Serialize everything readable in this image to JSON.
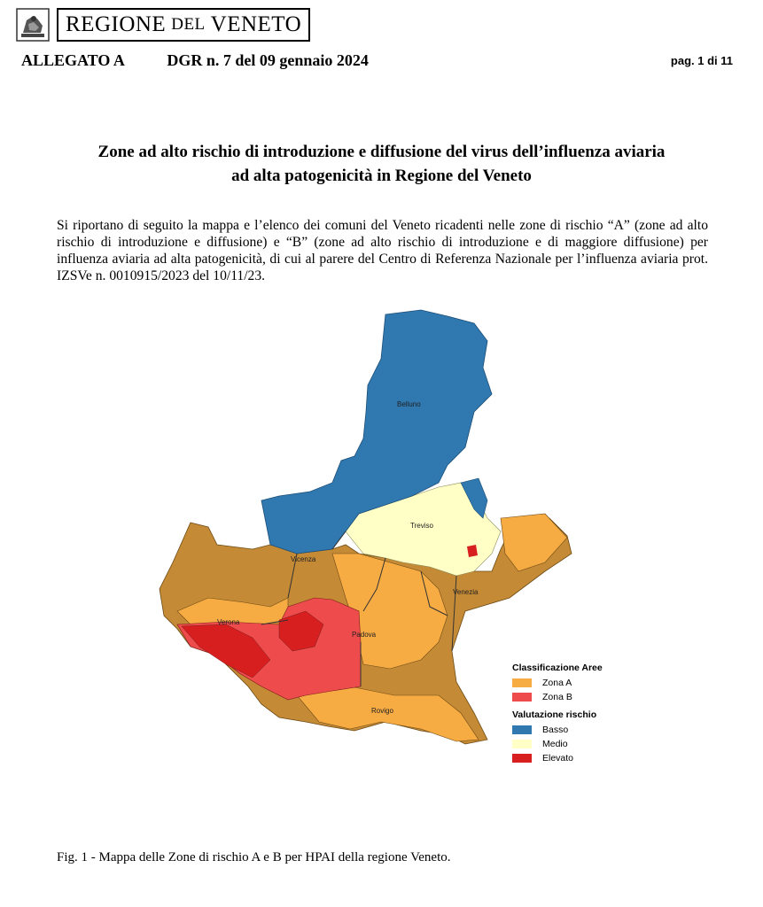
{
  "header": {
    "logo_prefix": "REGIONE",
    "logo_mid": "DEL",
    "logo_suffix": "VENETO",
    "allegato": "ALLEGATO A",
    "dgr": "DGR n. 7 del 09 gennaio 2024",
    "page": "pag. 1 di 11"
  },
  "title": {
    "line1": "Zone ad alto rischio di introduzione e diffusione del virus dell’influenza aviaria",
    "line2": "ad alta patogenicità in Regione del Veneto"
  },
  "intro": "Si riportano di seguito la mappa e l’elenco dei comuni del Veneto ricadenti nelle zone di rischio “A” (zone ad alto rischio di introduzione e diffusione) e “B” (zone ad alto rischio di introduzione e di maggiore diffusione) per influenza aviaria ad alta patogenicità, di cui al parere del Centro di Referenza Nazionale per l’influenza aviaria prot. IZSVe n. 0010915/2023 del 10/11/23.",
  "map": {
    "labels": {
      "belluno": "Belluno",
      "treviso": "Treviso",
      "vicenza": "Vicenza",
      "venezia": "Venezia",
      "verona": "Verona",
      "padova": "Padova",
      "rovigo": "Rovigo"
    },
    "legend": {
      "heading_areas": "Classificazione Aree",
      "zona_a": "Zona A",
      "zona_b": "Zona B",
      "heading_risk": "Valutazione rischio",
      "basso": "Basso",
      "medio": "Medio",
      "elevato": "Elevato"
    },
    "colors": {
      "zona_a": "#f7ab43",
      "zona_b": "#ee4c4c",
      "basso": "#2f78b0",
      "medio": "#ffffc6",
      "elevato": "#d81f20",
      "base": "#c58a35"
    }
  },
  "caption": "Fig. 1 - Mappa delle Zone di rischio A e B per HPAI della regione Veneto."
}
